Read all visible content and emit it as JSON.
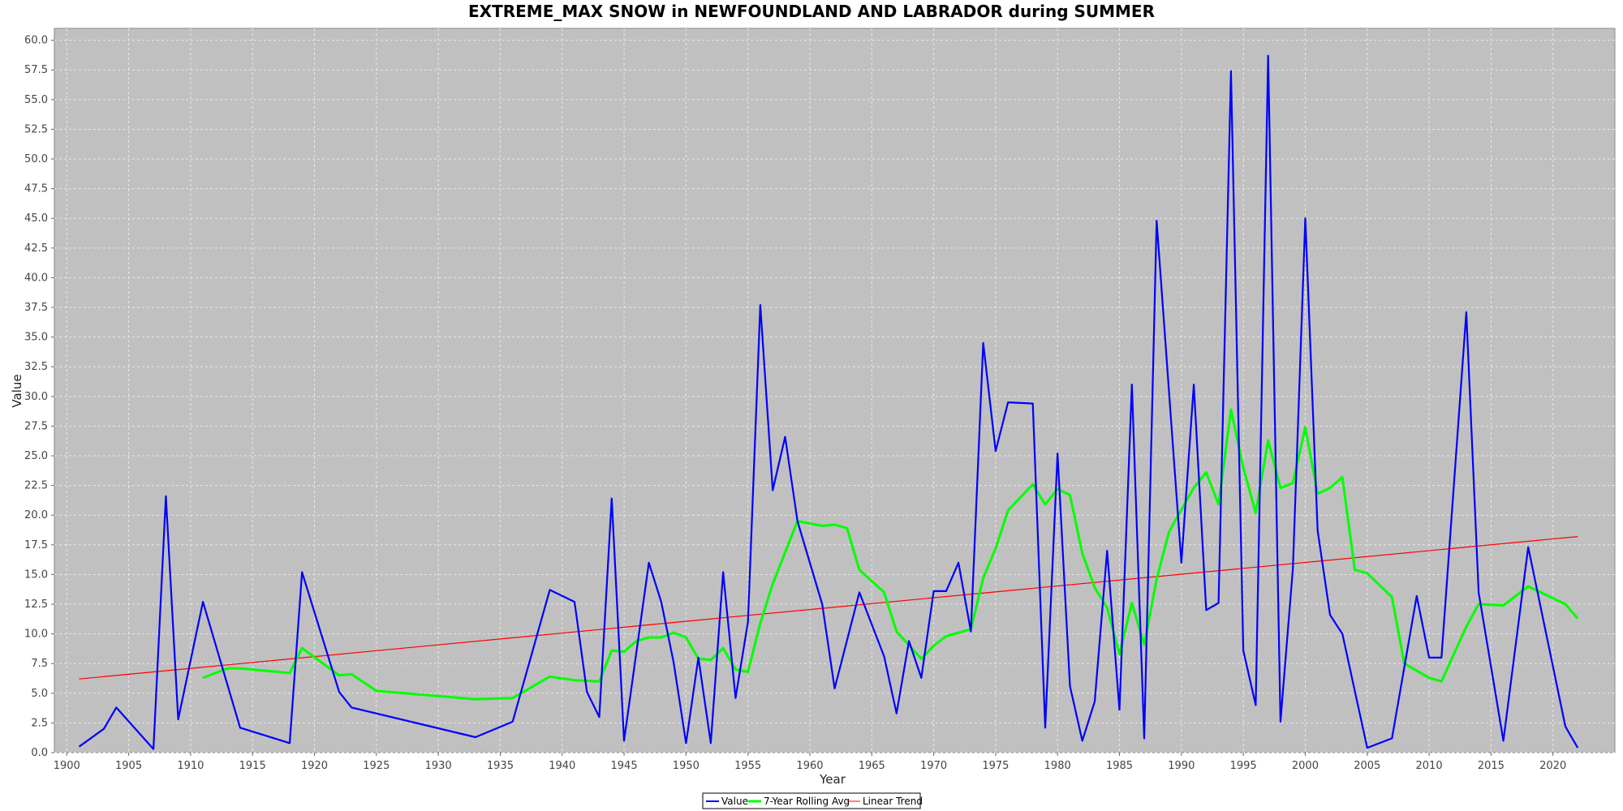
{
  "chart_data": {
    "type": "line",
    "title": "EXTREME_MAX SNOW in NEWFOUNDLAND AND LABRADOR during SUMMER",
    "xlabel": "Year",
    "ylabel": "Value",
    "xlim": [
      1899,
      2025
    ],
    "ylim": [
      0,
      61
    ],
    "x_ticks": [
      1900,
      1905,
      1910,
      1915,
      1920,
      1925,
      1930,
      1935,
      1940,
      1945,
      1950,
      1955,
      1960,
      1965,
      1970,
      1975,
      1980,
      1985,
      1990,
      1995,
      2000,
      2005,
      2010,
      2015,
      2020
    ],
    "y_ticks": [
      0.0,
      2.5,
      5.0,
      7.5,
      10.0,
      12.5,
      15.0,
      17.5,
      20.0,
      22.5,
      25.0,
      27.5,
      30.0,
      32.5,
      35.0,
      37.5,
      40.0,
      42.5,
      45.0,
      47.5,
      50.0,
      52.5,
      55.0,
      57.5,
      60.0
    ],
    "grid": true,
    "legend_position": "bottom-center",
    "colors": {
      "plot_background": "#c0c0c0",
      "grid": "#e8e8e8",
      "value": "#0000ff",
      "rolling": "#00ff00",
      "trend": "#ff0000"
    },
    "series": [
      {
        "name": "Value",
        "points": [
          [
            1901,
            0.5
          ],
          [
            1903,
            2.0
          ],
          [
            1904,
            3.8
          ],
          [
            1907,
            0.3
          ],
          [
            1908,
            21.6
          ],
          [
            1909,
            2.8
          ],
          [
            1911,
            12.7
          ],
          [
            1914,
            2.1
          ],
          [
            1918,
            0.8
          ],
          [
            1919,
            15.2
          ],
          [
            1922,
            5.1
          ],
          [
            1923,
            3.8
          ],
          [
            1933,
            1.3
          ],
          [
            1936,
            2.6
          ],
          [
            1939,
            13.7
          ],
          [
            1941,
            12.7
          ],
          [
            1942,
            5.1
          ],
          [
            1943,
            3.0
          ],
          [
            1944,
            21.4
          ],
          [
            1945,
            1.0
          ],
          [
            1947,
            16.0
          ],
          [
            1948,
            12.7
          ],
          [
            1949,
            7.6
          ],
          [
            1950,
            0.8
          ],
          [
            1951,
            8.0
          ],
          [
            1952,
            0.8
          ],
          [
            1953,
            15.2
          ],
          [
            1954,
            4.6
          ],
          [
            1955,
            11.0
          ],
          [
            1956,
            37.7
          ],
          [
            1957,
            22.1
          ],
          [
            1958,
            26.6
          ],
          [
            1959,
            19.5
          ],
          [
            1961,
            12.5
          ],
          [
            1962,
            5.4
          ],
          [
            1964,
            13.5
          ],
          [
            1966,
            8.1
          ],
          [
            1967,
            3.3
          ],
          [
            1968,
            9.4
          ],
          [
            1969,
            6.3
          ],
          [
            1970,
            13.6
          ],
          [
            1971,
            13.6
          ],
          [
            1972,
            16.0
          ],
          [
            1973,
            10.2
          ],
          [
            1974,
            34.5
          ],
          [
            1975,
            25.4
          ],
          [
            1976,
            29.5
          ],
          [
            1978,
            29.4
          ],
          [
            1979,
            2.1
          ],
          [
            1980,
            25.2
          ],
          [
            1981,
            5.6
          ],
          [
            1982,
            1.0
          ],
          [
            1983,
            4.3
          ],
          [
            1984,
            17.0
          ],
          [
            1985,
            3.6
          ],
          [
            1986,
            31.0
          ],
          [
            1987,
            1.2
          ],
          [
            1988,
            44.8
          ],
          [
            1990,
            16.0
          ],
          [
            1991,
            31.0
          ],
          [
            1992,
            12.0
          ],
          [
            1993,
            12.6
          ],
          [
            1994,
            57.4
          ],
          [
            1995,
            8.6
          ],
          [
            1996,
            4.0
          ],
          [
            1997,
            58.7
          ],
          [
            1998,
            2.6
          ],
          [
            1999,
            15.5
          ],
          [
            2000,
            45.0
          ],
          [
            2001,
            18.7
          ],
          [
            2002,
            11.6
          ],
          [
            2003,
            10.0
          ],
          [
            2005,
            0.4
          ],
          [
            2007,
            1.2
          ],
          [
            2009,
            13.2
          ],
          [
            2010,
            8.0
          ],
          [
            2011,
            8.0
          ],
          [
            2013,
            37.1
          ],
          [
            2014,
            13.5
          ],
          [
            2016,
            1.0
          ],
          [
            2018,
            17.3
          ],
          [
            2021,
            2.2
          ],
          [
            2022,
            0.4
          ]
        ]
      },
      {
        "name": "7-Year Rolling Avg",
        "points": [
          [
            1911,
            6.3
          ],
          [
            1913,
            7.1
          ],
          [
            1914,
            7.1
          ],
          [
            1918,
            6.7
          ],
          [
            1919,
            8.8
          ],
          [
            1922,
            6.5
          ],
          [
            1923,
            6.6
          ],
          [
            1925,
            5.2
          ],
          [
            1933,
            4.5
          ],
          [
            1936,
            4.6
          ],
          [
            1939,
            6.4
          ],
          [
            1941,
            6.1
          ],
          [
            1943,
            6.0
          ],
          [
            1944,
            8.6
          ],
          [
            1945,
            8.5
          ],
          [
            1946,
            9.4
          ],
          [
            1947,
            9.7
          ],
          [
            1948,
            9.7
          ],
          [
            1949,
            10.1
          ],
          [
            1950,
            9.7
          ],
          [
            1951,
            7.9
          ],
          [
            1952,
            7.8
          ],
          [
            1953,
            8.8
          ],
          [
            1954,
            7.0
          ],
          [
            1955,
            6.8
          ],
          [
            1956,
            10.9
          ],
          [
            1957,
            14.2
          ],
          [
            1959,
            19.5
          ],
          [
            1961,
            19.1
          ],
          [
            1962,
            19.2
          ],
          [
            1963,
            18.9
          ],
          [
            1964,
            15.4
          ],
          [
            1966,
            13.5
          ],
          [
            1967,
            10.2
          ],
          [
            1969,
            7.9
          ],
          [
            1970,
            9.0
          ],
          [
            1971,
            9.8
          ],
          [
            1973,
            10.4
          ],
          [
            1974,
            14.7
          ],
          [
            1975,
            17.2
          ],
          [
            1976,
            20.4
          ],
          [
            1978,
            22.6
          ],
          [
            1979,
            20.9
          ],
          [
            1980,
            22.2
          ],
          [
            1981,
            21.7
          ],
          [
            1982,
            16.8
          ],
          [
            1983,
            13.9
          ],
          [
            1984,
            12.2
          ],
          [
            1985,
            8.3
          ],
          [
            1986,
            12.6
          ],
          [
            1987,
            9.1
          ],
          [
            1988,
            14.6
          ],
          [
            1989,
            18.6
          ],
          [
            1991,
            22.3
          ],
          [
            1992,
            23.6
          ],
          [
            1993,
            20.9
          ],
          [
            1994,
            28.9
          ],
          [
            1995,
            24.0
          ],
          [
            1996,
            20.2
          ],
          [
            1997,
            26.3
          ],
          [
            1998,
            22.3
          ],
          [
            1999,
            22.7
          ],
          [
            2000,
            27.4
          ],
          [
            2001,
            21.8
          ],
          [
            2002,
            22.3
          ],
          [
            2003,
            23.2
          ],
          [
            2004,
            15.4
          ],
          [
            2005,
            15.1
          ],
          [
            2007,
            13.1
          ],
          [
            2008,
            7.5
          ],
          [
            2010,
            6.3
          ],
          [
            2011,
            6.0
          ],
          [
            2013,
            10.6
          ],
          [
            2014,
            12.5
          ],
          [
            2016,
            12.4
          ],
          [
            2018,
            14.0
          ],
          [
            2021,
            12.5
          ],
          [
            2022,
            11.3
          ]
        ]
      },
      {
        "name": "Linear Trend",
        "points": [
          [
            1901,
            6.2
          ],
          [
            2022,
            18.2
          ]
        ]
      }
    ]
  }
}
